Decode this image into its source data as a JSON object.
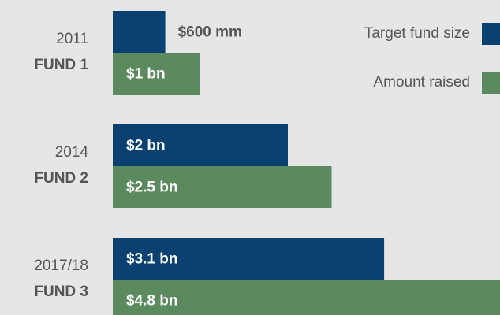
{
  "chart_data": {
    "type": "bar",
    "orientation": "horizontal",
    "categories": [
      "2011",
      "2014",
      "2017/18"
    ],
    "category_labels": [
      "FUND 1",
      "FUND 2",
      "FUND 3"
    ],
    "series": [
      {
        "name": "Target fund size",
        "color": "#0b4170",
        "values": [
          0.6,
          2,
          3.1
        ],
        "value_labels": [
          "$600 mm",
          "$2 bn",
          "$3.1 bn"
        ]
      },
      {
        "name": "Amount raised",
        "color": "#5b8a5f",
        "values": [
          1,
          2.5,
          4.8
        ],
        "value_labels": [
          "$1 bn",
          "$2.5 bn",
          "$4.8 bn"
        ]
      }
    ]
  }
}
